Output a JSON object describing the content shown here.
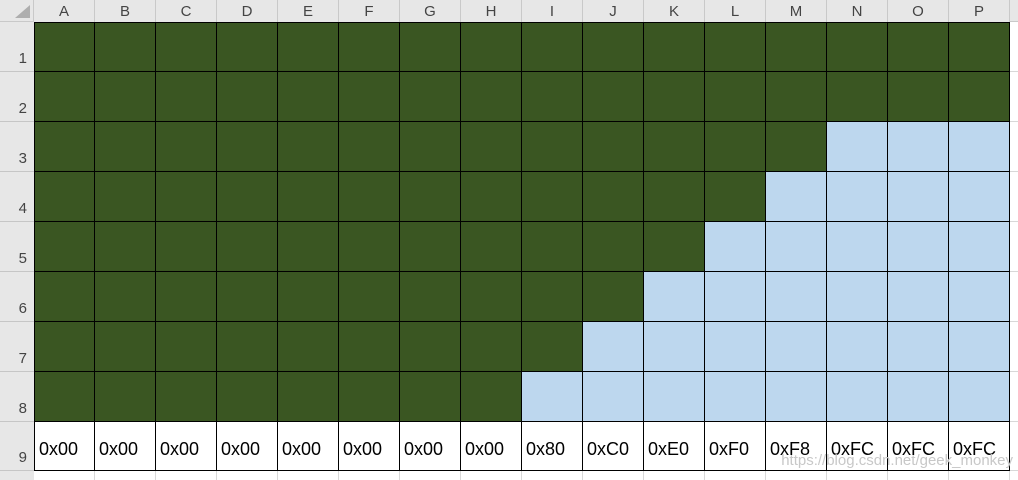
{
  "sheet": {
    "columns": [
      "A",
      "B",
      "C",
      "D",
      "E",
      "F",
      "G",
      "H",
      "I",
      "J",
      "K",
      "L",
      "M",
      "N",
      "O",
      "P"
    ],
    "rows": [
      "1",
      "2",
      "3",
      "4",
      "5",
      "6",
      "7",
      "8"
    ],
    "hex_row_header": "9",
    "fill_legend": {
      "G": "dark-green-filled",
      "B": "light-blue-cleared"
    },
    "fill_rows": [
      "GGGGGGGGGGGGGGGG",
      "GGGGGGGGGGGGGGGG",
      "GGGGGGGGGGGGGBBB",
      "GGGGGGGGGGGGBBBB",
      "GGGGGGGGGGGBBBBB",
      "GGGGGGGGGGBBBBBB",
      "GGGGGGGGGBBBBBBB",
      "GGGGGGGGBBBBBBBB"
    ],
    "hex_values": [
      "0x00",
      "0x00",
      "0x00",
      "0x00",
      "0x00",
      "0x00",
      "0x00",
      "0x00",
      "0x80",
      "0xC0",
      "0xE0",
      "0xF0",
      "0xF8",
      "0xFC",
      "0xFC",
      "0xFC"
    ]
  },
  "colors": {
    "filled_cell": "#3A5622",
    "cleared_cell": "#BDD7EE",
    "header_bg": "#E7E7E7",
    "grid_border": "#000000",
    "faint_gridline": "#D8D8D8",
    "watermark_text": "#C8C8C8"
  },
  "watermark": {
    "text": "https://blog.csdn.net/geek_monkey"
  }
}
